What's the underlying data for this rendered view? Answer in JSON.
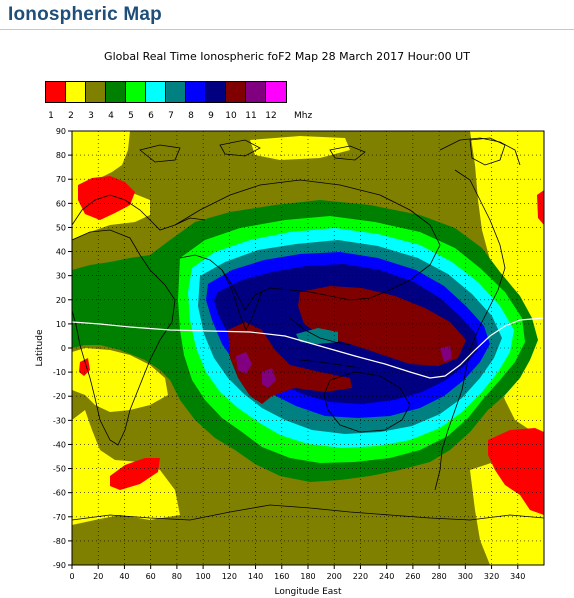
{
  "page": {
    "title": "Ionospheric Map"
  },
  "map": {
    "title": "Global Real Time Ionospheric foF2 Map  28 March 2017 Hour:00 UT",
    "xlabel": "Longitude East",
    "ylabel": "Latitude",
    "xticks": [
      "0",
      "20",
      "40",
      "60",
      "80",
      "100",
      "120",
      "140",
      "160",
      "180",
      "200",
      "220",
      "240",
      "260",
      "280",
      "300",
      "320",
      "340"
    ],
    "yticks": [
      "90",
      "80",
      "70",
      "60",
      "50",
      "40",
      "30",
      "20",
      "10",
      "0",
      "-10",
      "-20",
      "-30",
      "-40",
      "-50",
      "-60",
      "-70",
      "-80",
      "-90"
    ],
    "lon_range": [
      0,
      360
    ],
    "lat_range": [
      -90,
      90
    ],
    "grid": "dotted"
  },
  "legend": {
    "unit": "Mhz",
    "labels": [
      "1",
      "2",
      "3",
      "4",
      "5",
      "6",
      "7",
      "8",
      "9",
      "10",
      "11",
      "12"
    ],
    "colors": [
      "#ff0000",
      "#ffff00",
      "#808000",
      "#008000",
      "#00ff00",
      "#00ffff",
      "#008080",
      "#0000ff",
      "#000080",
      "#800000",
      "#800080",
      "#ff00ff"
    ]
  }
}
